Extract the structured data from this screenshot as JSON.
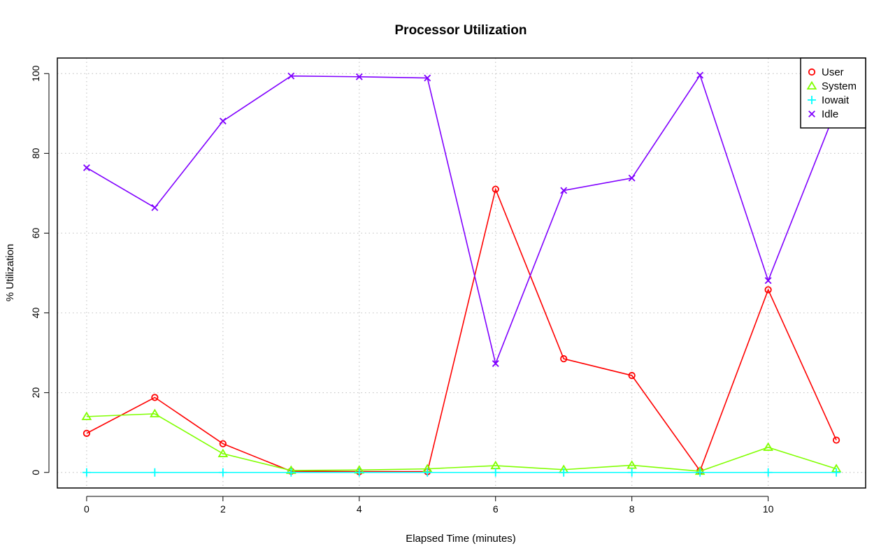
{
  "chart_data": {
    "type": "line",
    "title": "Processor Utilization",
    "xlabel": "Elapsed Time (minutes)",
    "ylabel": "% Utilization",
    "x": [
      0,
      1,
      2,
      3,
      4,
      5,
      6,
      7,
      8,
      9,
      10,
      11
    ],
    "xlim": [
      -0.43,
      11.43
    ],
    "ylim": [
      -3.9,
      103.9
    ],
    "xticks": [
      0,
      2,
      4,
      6,
      8,
      10
    ],
    "yticks": [
      0,
      20,
      40,
      60,
      80,
      100
    ],
    "xtick_labels": [
      "0",
      "2",
      "4",
      "6",
      "8",
      "10"
    ],
    "ytick_labels": [
      "0",
      "20",
      "40",
      "60",
      "80",
      "100"
    ],
    "grid": true,
    "legend_position": "top-right",
    "series": [
      {
        "name": "User",
        "color": "#ff0000",
        "marker": "circle",
        "values": [
          9.8,
          18.8,
          7.2,
          0.3,
          0.2,
          0.2,
          71.0,
          28.5,
          24.3,
          0.4,
          45.8,
          8.1
        ]
      },
      {
        "name": "System",
        "color": "#80ff00",
        "marker": "triangle",
        "values": [
          14.0,
          14.7,
          4.7,
          0.5,
          0.6,
          0.9,
          1.7,
          0.7,
          1.8,
          0.3,
          6.3,
          0.9
        ]
      },
      {
        "name": "Iowait",
        "color": "#00ffff",
        "marker": "plus",
        "values": [
          0,
          0,
          0,
          0,
          0,
          0,
          0,
          0,
          0,
          0,
          0,
          0
        ]
      },
      {
        "name": "Idle",
        "color": "#8000ff",
        "marker": "cross",
        "values": [
          76.4,
          66.4,
          88.1,
          99.4,
          99.2,
          98.9,
          27.3,
          70.7,
          73.8,
          99.6,
          48.1,
          91.2
        ]
      }
    ]
  }
}
